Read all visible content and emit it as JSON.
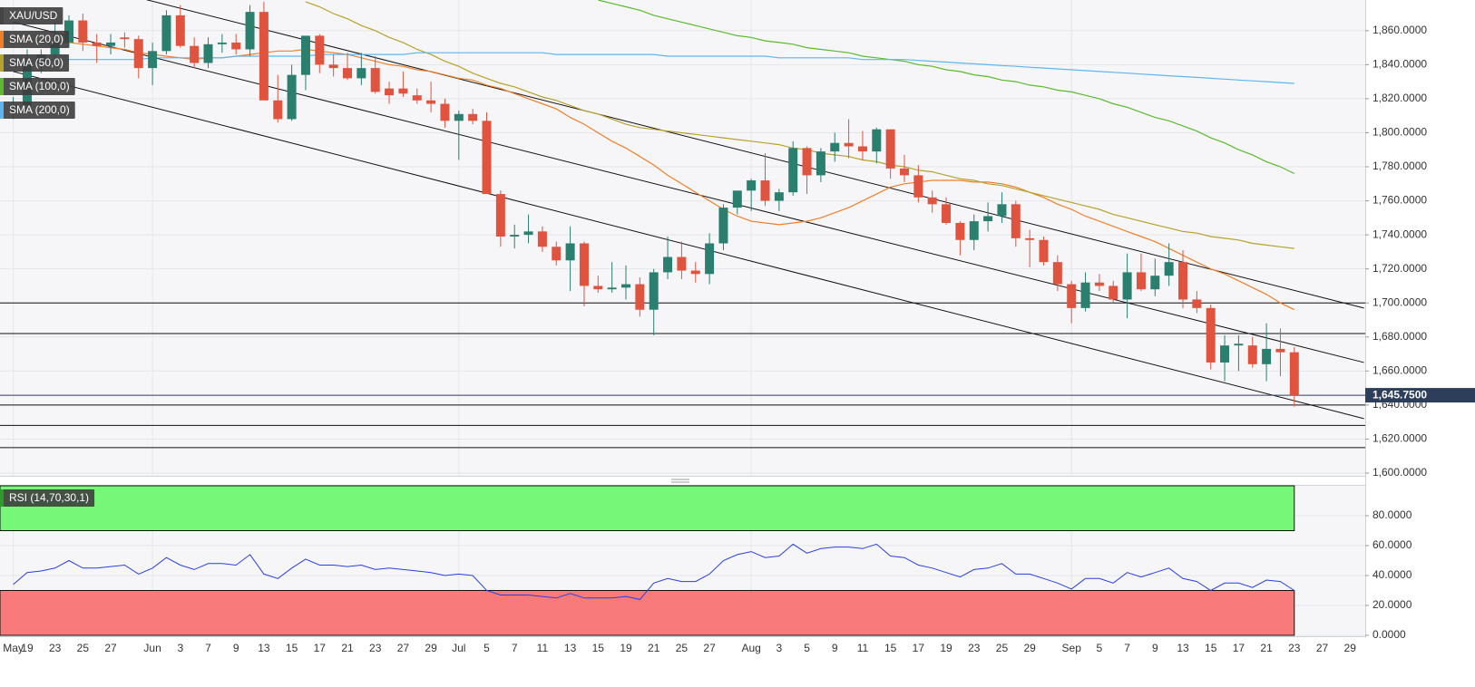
{
  "chart_data": {
    "type": "candlestick",
    "name": "XAU/USD",
    "up_color": "#2b7f6f",
    "down_color": "#e0533f",
    "categories": [
      "May",
      "19",
      null,
      "23",
      null,
      "25",
      null,
      "27",
      null,
      null,
      "Jun",
      null,
      "3",
      null,
      "7",
      null,
      "9",
      null,
      "13",
      null,
      "15",
      null,
      "17",
      null,
      "21",
      null,
      "23",
      null,
      "27",
      null,
      "29",
      null,
      "Jul",
      null,
      "5",
      null,
      "7",
      null,
      "11",
      null,
      "13",
      null,
      "15",
      null,
      "19",
      null,
      "21",
      null,
      "25",
      null,
      "27",
      null,
      null,
      "Aug",
      null,
      "3",
      null,
      "5",
      null,
      "9",
      null,
      "11",
      null,
      "15",
      null,
      "17",
      null,
      "19",
      null,
      "23",
      null,
      "25",
      null,
      "29",
      null,
      null,
      "Sep",
      null,
      "5",
      null,
      "7",
      null,
      "9",
      null,
      "13",
      null,
      "15",
      null,
      "17",
      null,
      "21",
      null,
      "23",
      null,
      "27",
      null,
      "29"
    ],
    "open": [
      1815,
      1816,
      1841,
      1846,
      1853,
      1866,
      1853,
      1851,
      1856,
      1855,
      1838,
      1848,
      1869,
      1851,
      1841,
      1852,
      1853,
      1849,
      1871,
      1819,
      1808,
      1834,
      1857,
      1840,
      1838,
      1832,
      1838,
      1826,
      1826,
      1822,
      1819,
      1817,
      1807,
      1811,
      1807,
      1764,
      1739,
      1740,
      1742,
      1733,
      1725,
      1735,
      1710,
      1708,
      1709,
      1711,
      1696,
      1718,
      1727,
      1719,
      1717,
      1735,
      1756,
      1766,
      1772,
      1760,
      1765,
      1791,
      1775,
      1789,
      1794,
      1792,
      1789,
      1802,
      1779,
      1775,
      1762,
      1758,
      1747,
      1737,
      1748,
      1751,
      1758,
      1738,
      1737,
      1724,
      1711,
      1697,
      1712,
      1710,
      1702,
      1718,
      1708,
      1716,
      1724,
      1702,
      1697,
      1665,
      1675,
      1675,
      1664,
      1673,
      1671,
      null,
      null,
      null,
      null
    ],
    "high": [
      1821,
      1849,
      1849,
      1865,
      1869,
      1870,
      1858,
      1858,
      1859,
      1857,
      1853,
      1872,
      1875,
      1856,
      1856,
      1858,
      1858,
      1875,
      1877,
      1834,
      1840,
      1857,
      1858,
      1846,
      1847,
      1847,
      1845,
      1830,
      1836,
      1826,
      1830,
      1820,
      1813,
      1814,
      1812,
      1766,
      1746,
      1752,
      1745,
      1736,
      1745,
      1736,
      1716,
      1724,
      1722,
      1715,
      1720,
      1739,
      1736,
      1724,
      1741,
      1758,
      1766,
      1773,
      1788,
      1767,
      1795,
      1792,
      1791,
      1800,
      1808,
      1801,
      1803,
      1802,
      1787,
      1781,
      1766,
      1762,
      1748,
      1752,
      1759,
      1765,
      1760,
      1743,
      1739,
      1728,
      1713,
      1718,
      1717,
      1713,
      1729,
      1729,
      1726,
      1735,
      1731,
      1707,
      1699,
      1681,
      1681,
      1680,
      1688,
      1685,
      1674,
      null,
      null,
      null,
      null
    ],
    "low": [
      1808,
      1813,
      1835,
      1842,
      1850,
      1848,
      1841,
      1846,
      1850,
      1832,
      1828,
      1846,
      1850,
      1838,
      1838,
      1847,
      1846,
      1845,
      1821,
      1806,
      1807,
      1825,
      1835,
      1833,
      1831,
      1828,
      1823,
      1817,
      1821,
      1817,
      1812,
      1803,
      1784,
      1805,
      1764,
      1733,
      1732,
      1735,
      1730,
      1722,
      1707,
      1698,
      1706,
      1706,
      1702,
      1692,
      1681,
      1714,
      1714,
      1712,
      1711,
      1731,
      1752,
      1754,
      1757,
      1754,
      1763,
      1764,
      1771,
      1783,
      1785,
      1784,
      1782,
      1773,
      1771,
      1759,
      1753,
      1746,
      1728,
      1731,
      1742,
      1747,
      1733,
      1721,
      1722,
      1707,
      1688,
      1695,
      1707,
      1700,
      1691,
      1707,
      1704,
      1710,
      1697,
      1694,
      1661,
      1654,
      1660,
      1662,
      1654,
      1657,
      1639,
      null,
      null,
      null,
      null
    ],
    "close": [
      1816,
      1841,
      1846,
      1853,
      1866,
      1853,
      1851,
      1853,
      1855,
      1838,
      1848,
      1869,
      1851,
      1841,
      1852,
      1853,
      1849,
      1871,
      1819,
      1808,
      1834,
      1857,
      1840,
      1838,
      1832,
      1838,
      1824,
      1822,
      1823,
      1819,
      1817,
      1807,
      1811,
      1807,
      1764,
      1739,
      1740,
      1742,
      1733,
      1725,
      1735,
      1710,
      1708,
      1709,
      1711,
      1696,
      1718,
      1727,
      1719,
      1717,
      1735,
      1756,
      1766,
      1772,
      1760,
      1765,
      1791,
      1775,
      1789,
      1794,
      1792,
      1789,
      1802,
      1779,
      1775,
      1762,
      1758,
      1747,
      1737,
      1748,
      1751,
      1758,
      1738,
      1737,
      1724,
      1711,
      1697,
      1712,
      1710,
      1702,
      1718,
      1708,
      1716,
      1724,
      1702,
      1697,
      1665,
      1675,
      1676,
      1664,
      1673,
      1671,
      1645.75,
      null,
      null,
      null,
      null
    ],
    "sma": [
      {
        "name": "SMA (20,0)",
        "color": "#f07f2a",
        "values": [
          1856,
          1855,
          1854,
          1853,
          1853,
          1852,
          1851,
          1850,
          1849,
          1847,
          1846,
          1845,
          1844,
          1843,
          1844,
          1844,
          1845,
          1846,
          1847,
          1848,
          1848,
          1849,
          1848,
          1847,
          1846,
          1844,
          1842,
          1840,
          1839,
          1837,
          1836,
          1834,
          1832,
          1831,
          1828,
          1826,
          1823,
          1820,
          1817,
          1814,
          1809,
          1805,
          1800,
          1795,
          1791,
          1786,
          1781,
          1775,
          1770,
          1765,
          1760,
          1755,
          1751,
          1748,
          1747,
          1746,
          1747,
          1748,
          1750,
          1753,
          1756,
          1760,
          1764,
          1768,
          1770,
          1771,
          1772,
          1772,
          1772,
          1771,
          1771,
          1770,
          1768,
          1765,
          1762,
          1758,
          1755,
          1751,
          1748,
          1745,
          1742,
          1739,
          1736,
          1732,
          1728,
          1724,
          1720,
          1717,
          1713,
          1709,
          1705,
          1700,
          1696,
          null,
          null,
          null,
          null
        ]
      },
      {
        "name": "SMA (50,0)",
        "color": "#b5a22c",
        "values": [
          null,
          null,
          null,
          null,
          null,
          null,
          null,
          null,
          null,
          null,
          null,
          null,
          null,
          null,
          null,
          null,
          null,
          null,
          null,
          null,
          null,
          1877,
          1874,
          1870,
          1867,
          1863,
          1860,
          1856,
          1853,
          1849,
          1846,
          1842,
          1839,
          1835,
          1832,
          1829,
          1827,
          1824,
          1821,
          1819,
          1816,
          1813,
          1811,
          1808,
          1805,
          1803,
          1802,
          1801,
          1800,
          1799,
          1798,
          1797,
          1796,
          1795,
          1794,
          1793,
          1791,
          1790,
          1788,
          1787,
          1786,
          1784,
          1783,
          1781,
          1780,
          1778,
          1777,
          1775,
          1773,
          1772,
          1770,
          1769,
          1767,
          1765,
          1763,
          1761,
          1759,
          1757,
          1755,
          1752,
          1750,
          1748,
          1746,
          1744,
          1742,
          1741,
          1739,
          1738,
          1737,
          1735,
          1734,
          1733,
          1732,
          null,
          null,
          null,
          null
        ]
      },
      {
        "name": "SMA (100,0)",
        "color": "#5bb82f",
        "values": [
          null,
          null,
          null,
          null,
          null,
          null,
          null,
          null,
          null,
          null,
          null,
          null,
          null,
          null,
          null,
          null,
          null,
          null,
          null,
          null,
          null,
          null,
          null,
          null,
          null,
          null,
          null,
          null,
          null,
          null,
          null,
          null,
          null,
          null,
          null,
          null,
          null,
          null,
          null,
          null,
          null,
          null,
          1878,
          1876,
          1874,
          1872,
          1869,
          1867,
          1865,
          1863,
          1861,
          1859,
          1857,
          1856,
          1854,
          1853,
          1852,
          1850,
          1849,
          1848,
          1847,
          1845,
          1844,
          1843,
          1842,
          1840,
          1839,
          1837,
          1836,
          1834,
          1833,
          1831,
          1830,
          1828,
          1827,
          1825,
          1824,
          1822,
          1820,
          1817,
          1815,
          1812,
          1809,
          1807,
          1804,
          1801,
          1797,
          1794,
          1790,
          1787,
          1783,
          1780,
          1776,
          null,
          null,
          null,
          null
        ]
      },
      {
        "name": "SMA (200,0)",
        "color": "#5eb5f0",
        "values": [
          1842,
          1842,
          1842,
          1843,
          1843,
          1843,
          1843,
          1843,
          1843,
          1843,
          1844,
          1844,
          1844,
          1844,
          1844,
          1844,
          1845,
          1845,
          1845,
          1845,
          1845,
          1845,
          1846,
          1846,
          1846,
          1846,
          1846,
          1846,
          1846,
          1847,
          1847,
          1847,
          1847,
          1847,
          1847,
          1847,
          1847,
          1847,
          1847,
          1846,
          1846,
          1846,
          1846,
          1846,
          1846,
          1846,
          1846,
          1845,
          1845,
          1845,
          1845,
          1845,
          1845,
          1845,
          1845,
          1844,
          1844,
          1844,
          1844,
          1844,
          1844,
          1843,
          1843,
          1843,
          1843,
          1842.5,
          1842,
          1841.5,
          1841,
          1840.5,
          1840,
          1839.5,
          1839,
          1838.5,
          1838,
          1837.5,
          1837,
          1836.5,
          1836,
          1835.5,
          1835,
          1834.5,
          1834,
          1833.5,
          1833,
          1832.5,
          1832,
          1831.5,
          1831,
          1830.5,
          1830,
          1829.5,
          1829,
          null,
          null,
          null,
          null
        ]
      }
    ],
    "hlines": [
      1700,
      1682,
      1640,
      1628,
      1615
    ],
    "trendlines": [
      {
        "x": [
          0,
          97
        ],
        "y": [
          1898,
          1697
        ]
      },
      {
        "x": [
          0,
          97
        ],
        "y": [
          1865,
          1665
        ]
      },
      {
        "x": [
          0,
          97
        ],
        "y": [
          1836,
          1632
        ]
      }
    ],
    "last_price": {
      "value": 1645.75,
      "label": "1,645.7500"
    },
    "ylim": [
      1600,
      1878
    ],
    "yticks": [
      {
        "value": 1600,
        "label": "1,600.0000"
      },
      {
        "value": 1620,
        "label": "1,620.0000"
      },
      {
        "value": 1640,
        "label": "1,640.0000"
      },
      {
        "value": 1660,
        "label": "1,660.0000"
      },
      {
        "value": 1680,
        "label": "1,680.0000"
      },
      {
        "value": 1700,
        "label": "1,700.0000"
      },
      {
        "value": 1720,
        "label": "1,720.0000"
      },
      {
        "value": 1740,
        "label": "1,740.0000"
      },
      {
        "value": 1760,
        "label": "1,760.0000"
      },
      {
        "value": 1780,
        "label": "1,780.0000"
      },
      {
        "value": 1800,
        "label": "1,800.0000"
      },
      {
        "value": 1820,
        "label": "1,820.0000"
      },
      {
        "value": 1840,
        "label": "1,840.0000"
      },
      {
        "value": 1860,
        "label": "1,860.0000"
      }
    ],
    "grid": true,
    "rsi": {
      "name": "RSI (14,70,30,1)",
      "color": "#2a3fe0",
      "overbought": 70,
      "oversold": 30,
      "overbought_color": "#77f777",
      "oversold_color": "#f87a7a",
      "values": [
        34,
        42,
        43,
        45,
        50,
        45,
        45,
        46,
        47,
        41,
        45,
        52,
        47,
        44,
        48,
        48,
        47,
        54,
        41,
        38,
        45,
        51,
        47,
        47,
        46,
        47,
        44,
        45,
        44,
        43,
        42,
        40,
        41,
        40,
        30,
        27,
        27,
        27,
        26,
        25,
        28,
        25,
        25,
        25,
        26,
        24,
        35,
        38,
        36,
        36,
        41,
        50,
        54,
        56,
        52,
        53,
        61,
        55,
        58,
        59,
        59,
        58,
        61,
        53,
        52,
        47,
        45,
        42,
        39,
        44,
        45,
        48,
        41,
        41,
        38,
        35,
        31,
        38,
        38,
        35,
        42,
        39,
        42,
        45,
        38,
        36,
        30,
        35,
        35,
        32,
        37,
        36,
        30,
        null,
        null,
        null,
        null
      ],
      "ylim": [
        0,
        100
      ],
      "yticks": [
        {
          "value": 0,
          "label": "0.0000"
        },
        {
          "value": 20,
          "label": "20.0000"
        },
        {
          "value": 40,
          "label": "40.0000"
        },
        {
          "value": 60,
          "label": "60.0000"
        },
        {
          "value": 80,
          "label": "80.0000"
        }
      ]
    }
  }
}
